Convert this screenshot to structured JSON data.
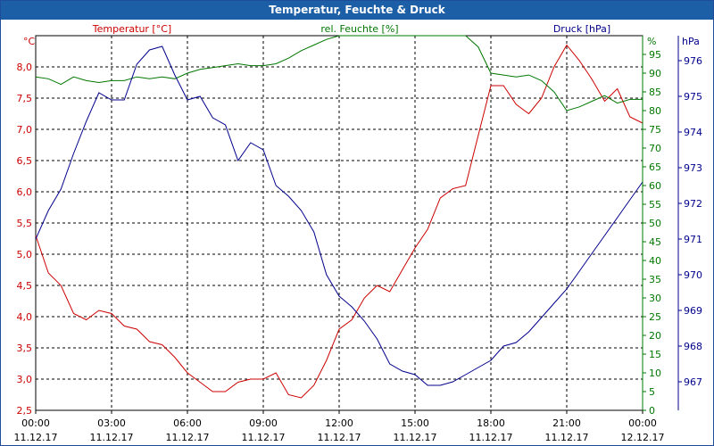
{
  "window": {
    "title": "Temperatur, Feuchte & Druck"
  },
  "colors": {
    "temperature": "#cc0000",
    "humidity": "#007700",
    "pressure": "#00008b",
    "title_bg": "#1d5fa6"
  },
  "chart_data": {
    "type": "line",
    "title": "Temperatur, Feuchte & Druck",
    "x_start": "11.12.17 00:00",
    "x_end": "12.12.17 00:00",
    "x_unit": "hours",
    "x_ticks": [
      {
        "time": "00:00",
        "date": "11.12.17"
      },
      {
        "time": "03:00",
        "date": "11.12.17"
      },
      {
        "time": "06:00",
        "date": "11.12.17"
      },
      {
        "time": "09:00",
        "date": "11.12.17"
      },
      {
        "time": "12:00",
        "date": "11.12.17"
      },
      {
        "time": "15:00",
        "date": "11.12.17"
      },
      {
        "time": "18:00",
        "date": "11.12.17"
      },
      {
        "time": "21:00",
        "date": "11.12.17"
      },
      {
        "time": "00:00",
        "date": "12.12.17"
      }
    ],
    "axes": {
      "temperature": {
        "unit_label": "°C",
        "legend": "Temperatur [°C]",
        "min": 2.5,
        "max": 8.5,
        "ticks": [
          "2,5",
          "3,0",
          "3,5",
          "4,0",
          "4,5",
          "5,0",
          "5,5",
          "6,0",
          "6,5",
          "7,0",
          "7,5",
          "8,0"
        ],
        "tick_values": [
          2.5,
          3.0,
          3.5,
          4.0,
          4.5,
          5.0,
          5.5,
          6.0,
          6.5,
          7.0,
          7.5,
          8.0
        ]
      },
      "humidity": {
        "unit_label": "%",
        "legend": "rel. Feuchte [%]",
        "min": 0,
        "max": 100,
        "ticks": [
          "0",
          "5",
          "10",
          "15",
          "20",
          "25",
          "30",
          "35",
          "40",
          "45",
          "50",
          "55",
          "60",
          "65",
          "70",
          "75",
          "80",
          "85",
          "90",
          "95"
        ],
        "tick_values": [
          0,
          5,
          10,
          15,
          20,
          25,
          30,
          35,
          40,
          45,
          50,
          55,
          60,
          65,
          70,
          75,
          80,
          85,
          90,
          95
        ]
      },
      "pressure": {
        "unit_label": "hPa",
        "legend": "Druck [hPa]",
        "min": 966.2,
        "max": 976.7,
        "ticks": [
          "967",
          "968",
          "969",
          "970",
          "971",
          "972",
          "973",
          "974",
          "975",
          "976"
        ],
        "tick_values": [
          967,
          968,
          969,
          970,
          971,
          972,
          973,
          974,
          975,
          976
        ]
      }
    },
    "series": [
      {
        "name": "Temperatur [°C]",
        "axis": "temperature",
        "x": [
          0,
          0.5,
          1,
          1.5,
          2,
          2.5,
          3,
          3.5,
          4,
          4.5,
          5,
          5.5,
          6,
          6.5,
          7,
          7.5,
          8,
          8.5,
          9,
          9.5,
          10,
          10.5,
          11,
          11.5,
          12,
          12.5,
          13,
          13.5,
          14,
          14.5,
          15,
          15.5,
          16,
          16.5,
          17,
          17.5,
          18,
          18.5,
          19,
          19.5,
          20,
          20.5,
          21,
          21.5,
          22,
          22.5,
          23,
          23.5,
          24
        ],
        "values": [
          5.3,
          4.7,
          4.5,
          4.05,
          3.95,
          4.1,
          4.05,
          3.85,
          3.8,
          3.6,
          3.55,
          3.35,
          3.1,
          2.95,
          2.8,
          2.8,
          2.95,
          3.0,
          3.0,
          3.1,
          2.75,
          2.7,
          2.9,
          3.3,
          3.8,
          3.95,
          4.3,
          4.5,
          4.4,
          4.75,
          5.1,
          5.4,
          5.9,
          6.05,
          6.1,
          6.9,
          7.7,
          7.7,
          7.4,
          7.25,
          7.5,
          8.0,
          8.35,
          8.1,
          7.8,
          7.45,
          7.65,
          7.2,
          7.1
        ]
      },
      {
        "name": "rel. Feuchte [%]",
        "axis": "humidity",
        "x": [
          0,
          0.5,
          1,
          1.5,
          2,
          2.5,
          3,
          3.5,
          4,
          4.5,
          5,
          5.5,
          6,
          6.5,
          7,
          7.5,
          8,
          8.5,
          9,
          9.5,
          10,
          10.5,
          11,
          11.5,
          12,
          12.5,
          13,
          13.5,
          14,
          14.5,
          15,
          15.5,
          16,
          16.5,
          17,
          17.5,
          18,
          18.5,
          19,
          19.5,
          20,
          20.5,
          21,
          21.5,
          22,
          22.5,
          23,
          23.5,
          24
        ],
        "values": [
          89,
          88.5,
          87,
          89,
          88,
          87.5,
          88,
          88,
          89,
          88.5,
          89,
          88.5,
          90,
          91,
          91.5,
          92,
          92.5,
          92,
          92,
          92.5,
          94,
          96,
          97.5,
          99,
          100,
          100,
          100,
          100,
          100,
          100,
          100,
          100.5,
          100.5,
          100.5,
          100.5,
          97,
          90,
          89.5,
          89,
          89.5,
          88,
          85,
          80,
          81,
          82.5,
          84,
          82,
          83,
          83
        ]
      },
      {
        "name": "Druck [hPa]",
        "axis": "pressure",
        "x": [
          0,
          0.5,
          1,
          1.5,
          2,
          2.5,
          3,
          3.5,
          4,
          4.5,
          5,
          5.5,
          6,
          6.5,
          7,
          7.5,
          8,
          8.5,
          9,
          9.5,
          10,
          10.5,
          11,
          11.5,
          12,
          12.5,
          13,
          13.5,
          14,
          14.5,
          15,
          15.5,
          16,
          16.5,
          17,
          17.5,
          18,
          18.5,
          19,
          19.5,
          20,
          20.5,
          21,
          21.5,
          22,
          22.5,
          23,
          23.5,
          24
        ],
        "values": [
          971.0,
          971.8,
          972.4,
          973.4,
          974.3,
          975.1,
          974.9,
          974.9,
          975.9,
          976.3,
          976.4,
          975.6,
          974.9,
          975.0,
          974.4,
          974.2,
          973.2,
          973.7,
          973.5,
          972.5,
          972.2,
          971.8,
          971.2,
          970.0,
          969.4,
          969.1,
          968.7,
          968.2,
          967.5,
          967.3,
          967.2,
          966.9,
          966.9,
          967.0,
          967.2,
          967.4,
          967.6,
          968.0,
          968.1,
          968.4,
          968.8,
          969.2,
          969.6,
          970.1,
          970.6,
          971.1,
          971.6,
          972.1,
          972.6
        ]
      }
    ],
    "grid": true
  }
}
